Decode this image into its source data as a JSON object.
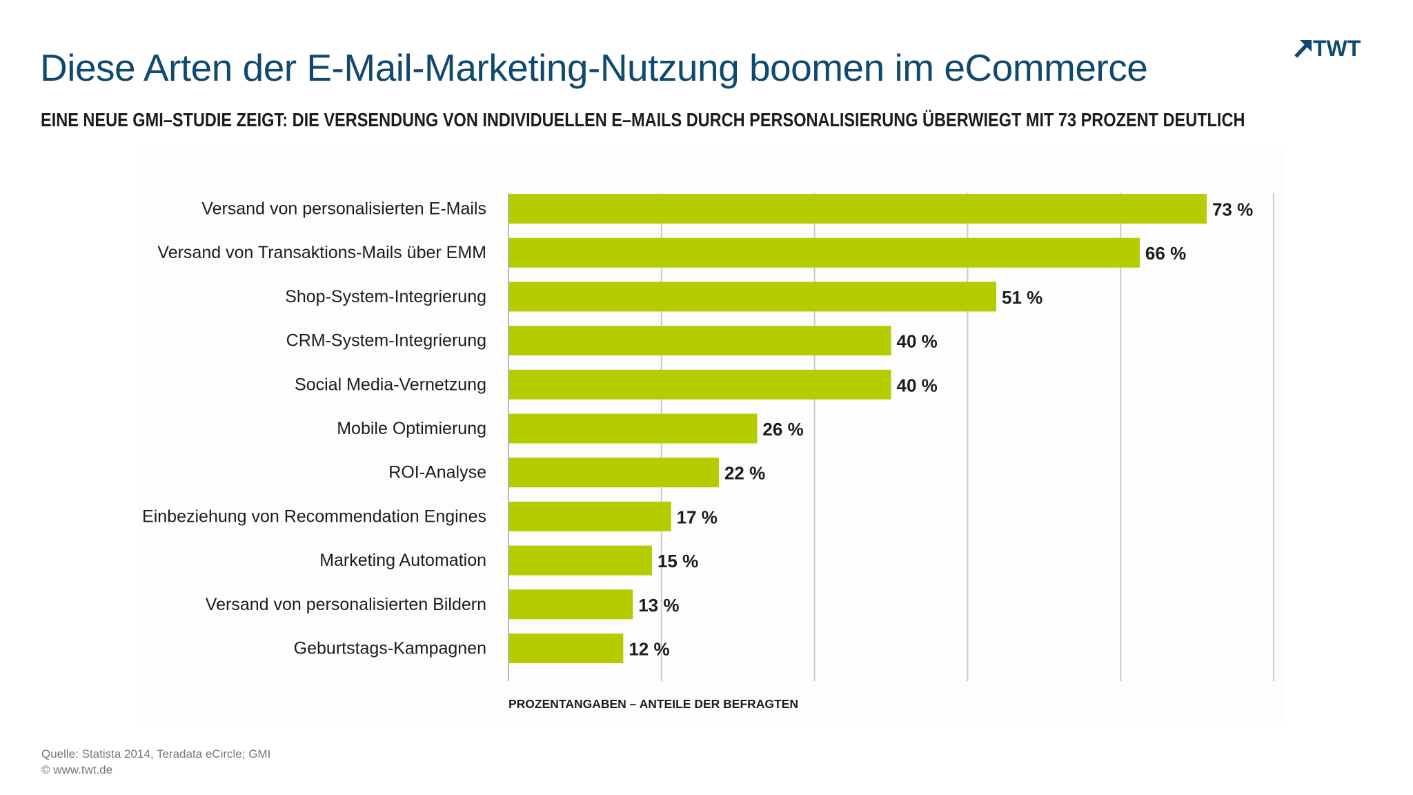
{
  "header": {
    "title": "Diese Arten der E-Mail-Marketing-Nutzung boomen im eCommerce",
    "subtitle": "EINE NEUE GMI–STUDIE ZEIGT: DIE VERSENDUNG VON INDIVIDUELLEN E–MAILS DURCH PERSONALISIERUNG ÜBERWIEGT MIT 73 PROZENT DEUTLICH",
    "logo_text": "TWT",
    "logo_icon": "arrow-up-right-icon"
  },
  "footer": {
    "source": "Quelle: Statista 2014, Teradata eCircle; GMI",
    "copyright": "©  www.twt.de"
  },
  "colors": {
    "bar": "#b5cc00",
    "title": "#0f4a6e",
    "logo": "#0f4a6e",
    "grid": "#c9c9c9"
  },
  "chart_data": {
    "type": "bar",
    "orientation": "horizontal",
    "categories": [
      "Versand von personalisierten E-Mails",
      "Versand von Transaktions-Mails über EMM",
      "Shop-System-Integrierung",
      "CRM-System-Integrierung",
      "Social Media-Vernetzung",
      "Mobile Optimierung",
      "ROI-Analyse",
      "Einbeziehung von Recommendation Engines",
      "Marketing Automation",
      "Versand von personalisierten Bildern",
      "Geburtstags-Kampagnen"
    ],
    "values": [
      73,
      66,
      51,
      40,
      40,
      26,
      22,
      17,
      15,
      13,
      12
    ],
    "value_labels": [
      "73 %",
      "66 %",
      "51 %",
      "40 %",
      "40 %",
      "26 %",
      "22 %",
      "17 %",
      "15 %",
      "13 %",
      "12 %"
    ],
    "xlabel": "PROZENTANGABEN – ANTEILE DER BEFRAGTEN",
    "xlim": [
      0,
      80
    ],
    "grid": true,
    "grid_step": 16
  }
}
